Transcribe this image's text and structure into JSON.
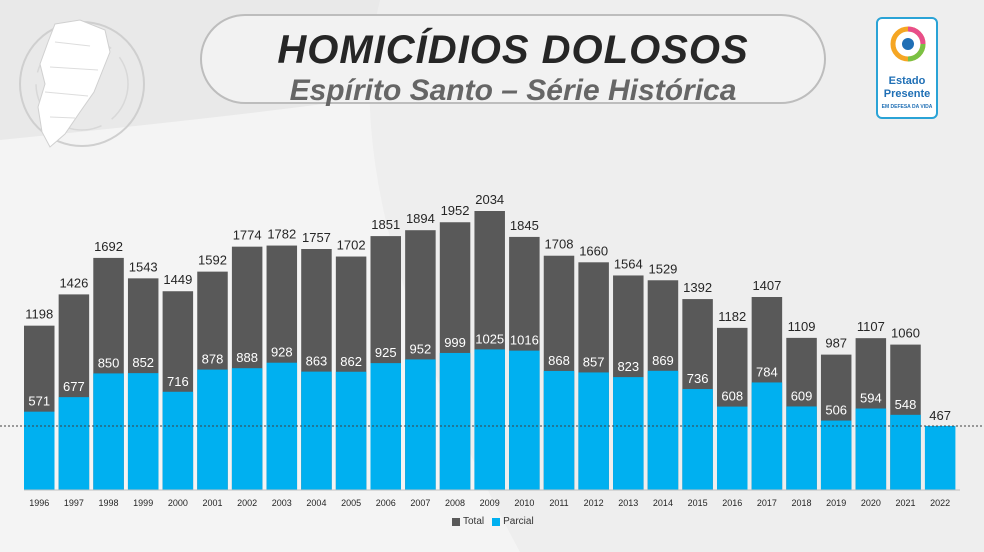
{
  "header": {
    "title": "HOMICÍDIOS DOLOSOS",
    "subtitle": "Espírito Santo – Série Histórica"
  },
  "logo": {
    "line1": "Estado",
    "line2": "Presente",
    "line3": "EM DEFESA DA VIDA"
  },
  "colors": {
    "total": "#595959",
    "parcial": "#00b0f0",
    "label_on_dark": "#ffffff",
    "label_above": "#262626"
  },
  "chart_data": {
    "type": "bar",
    "categories": [
      "1996",
      "1997",
      "1998",
      "1999",
      "2000",
      "2001",
      "2002",
      "2003",
      "2004",
      "2005",
      "2006",
      "2007",
      "2008",
      "2009",
      "2010",
      "2011",
      "2012",
      "2013",
      "2014",
      "2015",
      "2016",
      "2017",
      "2018",
      "2019",
      "2020",
      "2021",
      "2022"
    ],
    "series": [
      {
        "name": "Total",
        "values": [
          1198,
          1426,
          1692,
          1543,
          1449,
          1592,
          1774,
          1782,
          1757,
          1702,
          1851,
          1894,
          1952,
          2034,
          1845,
          1708,
          1660,
          1564,
          1529,
          1392,
          1182,
          1407,
          1109,
          987,
          1107,
          1060,
          null
        ]
      },
      {
        "name": "Parcial",
        "values": [
          571,
          677,
          850,
          852,
          716,
          878,
          888,
          928,
          863,
          862,
          925,
          952,
          999,
          1025,
          1016,
          868,
          857,
          823,
          869,
          736,
          608,
          784,
          609,
          506,
          594,
          548,
          467
        ]
      }
    ],
    "reference_line": 467,
    "ylim": [
      0,
      2200
    ],
    "legend": "bottom-center",
    "grid": false
  }
}
